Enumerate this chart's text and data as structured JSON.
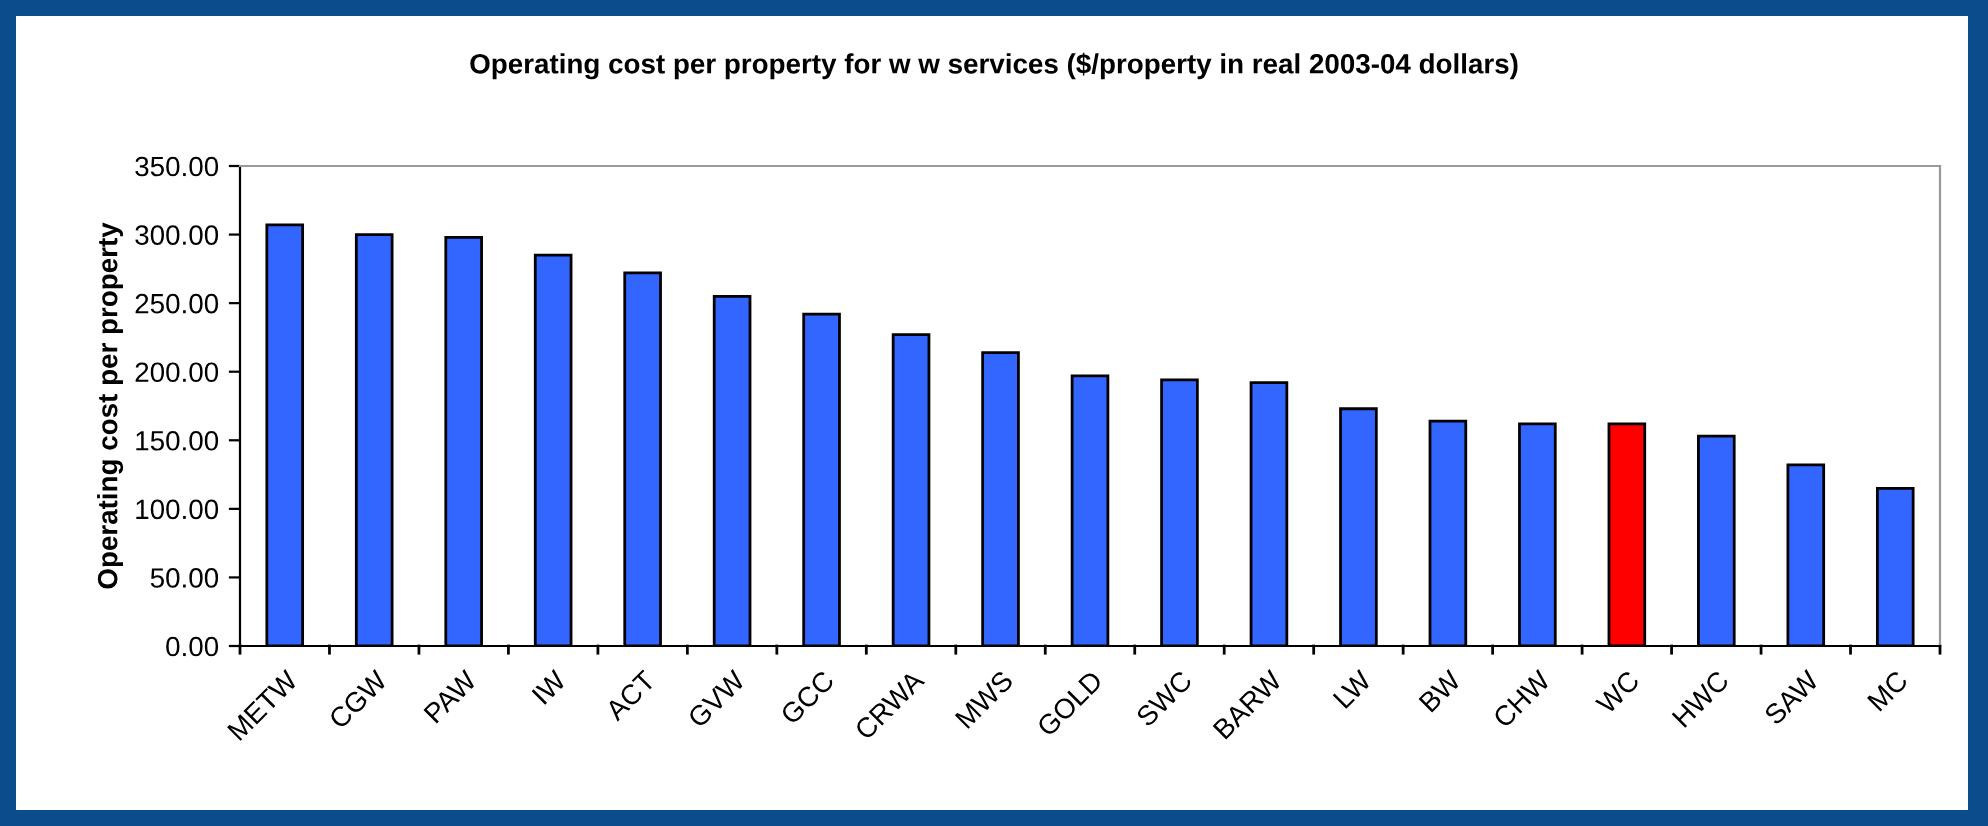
{
  "chart_data": {
    "type": "bar",
    "title": "Operating cost per property for w w services ($/property in real 2003-04 dollars)",
    "ylabel": "Operating cost per property",
    "categories": [
      "METW",
      "CGW",
      "PAW",
      "IW",
      "ACT",
      "GVW",
      "GCC",
      "CRWA",
      "MWS",
      "GOLD",
      "SWC",
      "BARW",
      "LW",
      "BW",
      "CHW",
      "WC",
      "HWC",
      "SAW",
      "MC"
    ],
    "values": [
      307,
      300,
      298,
      285,
      272,
      255,
      242,
      227,
      214,
      197,
      194,
      192,
      173,
      164,
      162,
      162,
      153,
      132,
      115
    ],
    "colors": [
      "#3366ff",
      "#3366ff",
      "#3366ff",
      "#3366ff",
      "#3366ff",
      "#3366ff",
      "#3366ff",
      "#3366ff",
      "#3366ff",
      "#3366ff",
      "#3366ff",
      "#3366ff",
      "#3366ff",
      "#3366ff",
      "#3366ff",
      "#ff0000",
      "#3366ff",
      "#3366ff",
      "#3366ff"
    ],
    "ylim": [
      0,
      350
    ],
    "yticks": [
      {
        "value": 0,
        "label": "0.00"
      },
      {
        "value": 50,
        "label": "50.00"
      },
      {
        "value": 100,
        "label": "100.00"
      },
      {
        "value": 150,
        "label": "150.00"
      },
      {
        "value": 200,
        "label": "200.00"
      },
      {
        "value": 250,
        "label": "250.00"
      },
      {
        "value": 300,
        "label": "300.00"
      },
      {
        "value": 350,
        "label": "350.00"
      }
    ],
    "grid": false,
    "legend": false
  }
}
